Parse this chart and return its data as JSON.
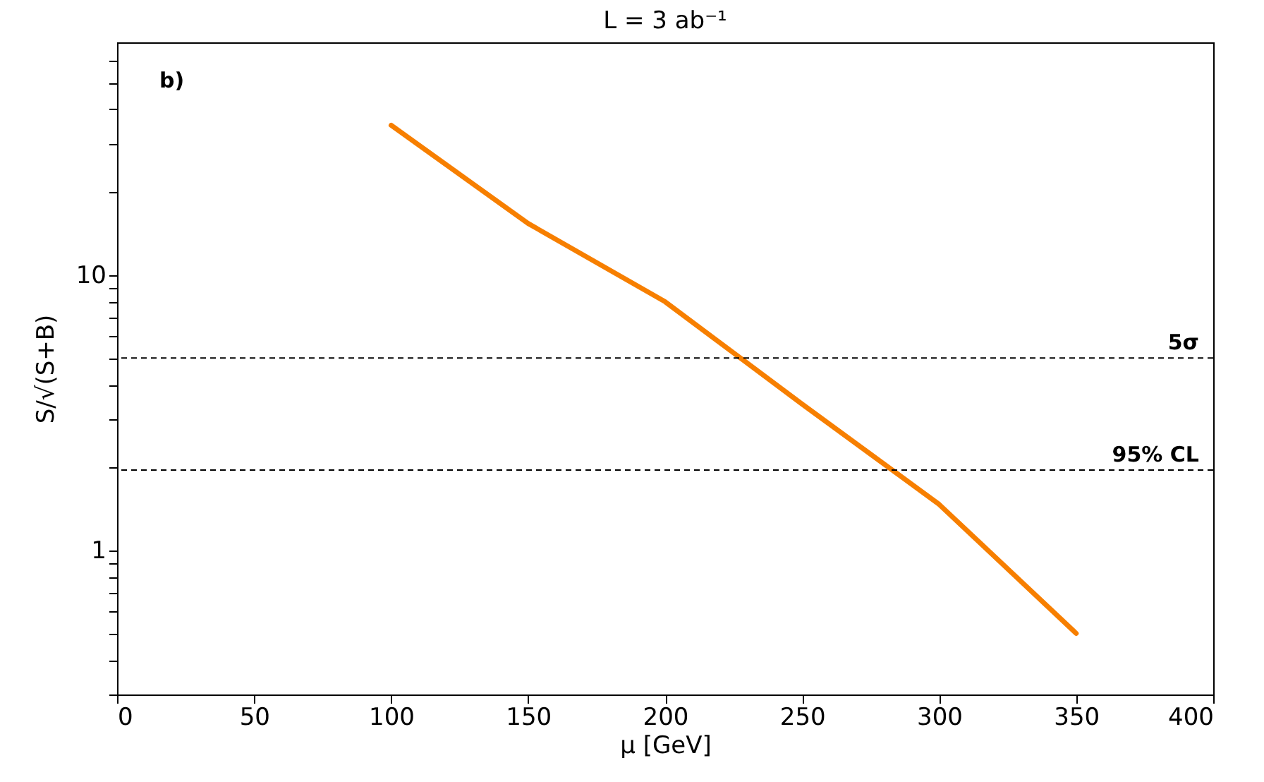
{
  "chart_data": {
    "type": "line",
    "title": "L = 3 ab⁻¹",
    "xlabel": "μ [GeV]",
    "ylabel": "S/√(S+B)",
    "x": [
      100,
      150,
      200,
      250,
      300,
      350
    ],
    "series": [
      {
        "color": "#f77f00",
        "values": [
          35,
          15.4,
          8.0,
          3.4,
          1.47,
          0.5
        ]
      }
    ],
    "log": true,
    "line_style": "solid",
    "marker": "none",
    "xlim": [
      0,
      400
    ],
    "xticks": [
      0,
      50,
      100,
      150,
      200,
      250,
      300,
      350,
      400
    ],
    "ylim": [
      0.3,
      70
    ],
    "yticks": [
      {
        "value": 0.3,
        "label": null
      },
      {
        "value": 0.4,
        "label": null
      },
      {
        "value": 0.5,
        "label": null
      },
      {
        "value": 0.6,
        "label": null
      },
      {
        "value": 0.7,
        "label": null
      },
      {
        "value": 0.8,
        "label": null
      },
      {
        "value": 0.9,
        "label": null
      },
      1,
      {
        "value": 2,
        "label": null
      },
      {
        "value": 3,
        "label": null
      },
      {
        "value": 4,
        "label": null
      },
      {
        "value": 5,
        "label": null
      },
      {
        "value": 6,
        "label": null
      },
      {
        "value": 7,
        "label": null
      },
      {
        "value": 8,
        "label": null
      },
      {
        "value": 9,
        "label": null
      },
      10,
      {
        "value": 20,
        "label": null
      },
      {
        "value": 30,
        "label": null
      },
      {
        "value": 40,
        "label": null
      },
      {
        "value": 50,
        "label": null
      },
      {
        "value": 60,
        "label": null
      }
    ],
    "ref_lines": [
      {
        "axis": "y",
        "value": 5,
        "label": "5σ",
        "color": "#000000",
        "line_style": "dashed"
      },
      {
        "axis": "y",
        "value": 1.96,
        "label": "95% CL",
        "color": "#000000",
        "line_style": "dashed"
      }
    ],
    "annotations": [
      "b)"
    ]
  }
}
